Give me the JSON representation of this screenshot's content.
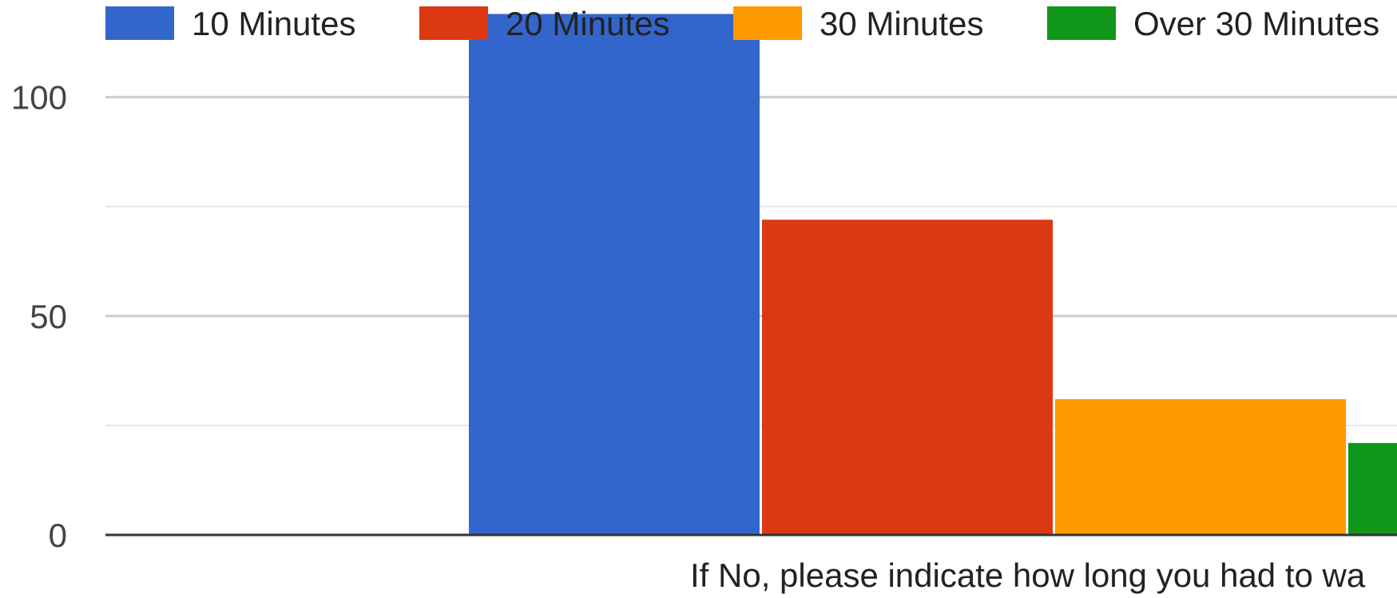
{
  "chart_data": {
    "type": "bar",
    "categories": [
      "If No, please indicate how long you had to wa"
    ],
    "xlabel": "If No, please indicate how long you had to wa",
    "ylabel": "",
    "ylim": [
      0,
      120
    ],
    "yticks": [
      0,
      50,
      100
    ],
    "grid": true,
    "legend": "top",
    "series": [
      {
        "name": "10 Minutes",
        "values": [
          119
        ],
        "color": "#3366cc"
      },
      {
        "name": "20 Minutes",
        "values": [
          72
        ],
        "color": "#dc3912"
      },
      {
        "name": "30 Minutes",
        "values": [
          31
        ],
        "color": "#ff9900"
      },
      {
        "name": "Over 30 Minutes",
        "values": [
          21
        ],
        "color": "#109618"
      }
    ],
    "colors": {
      "grid": "#cccccc",
      "minor_grid": "#e6e6e6",
      "axis": "#333333"
    }
  }
}
